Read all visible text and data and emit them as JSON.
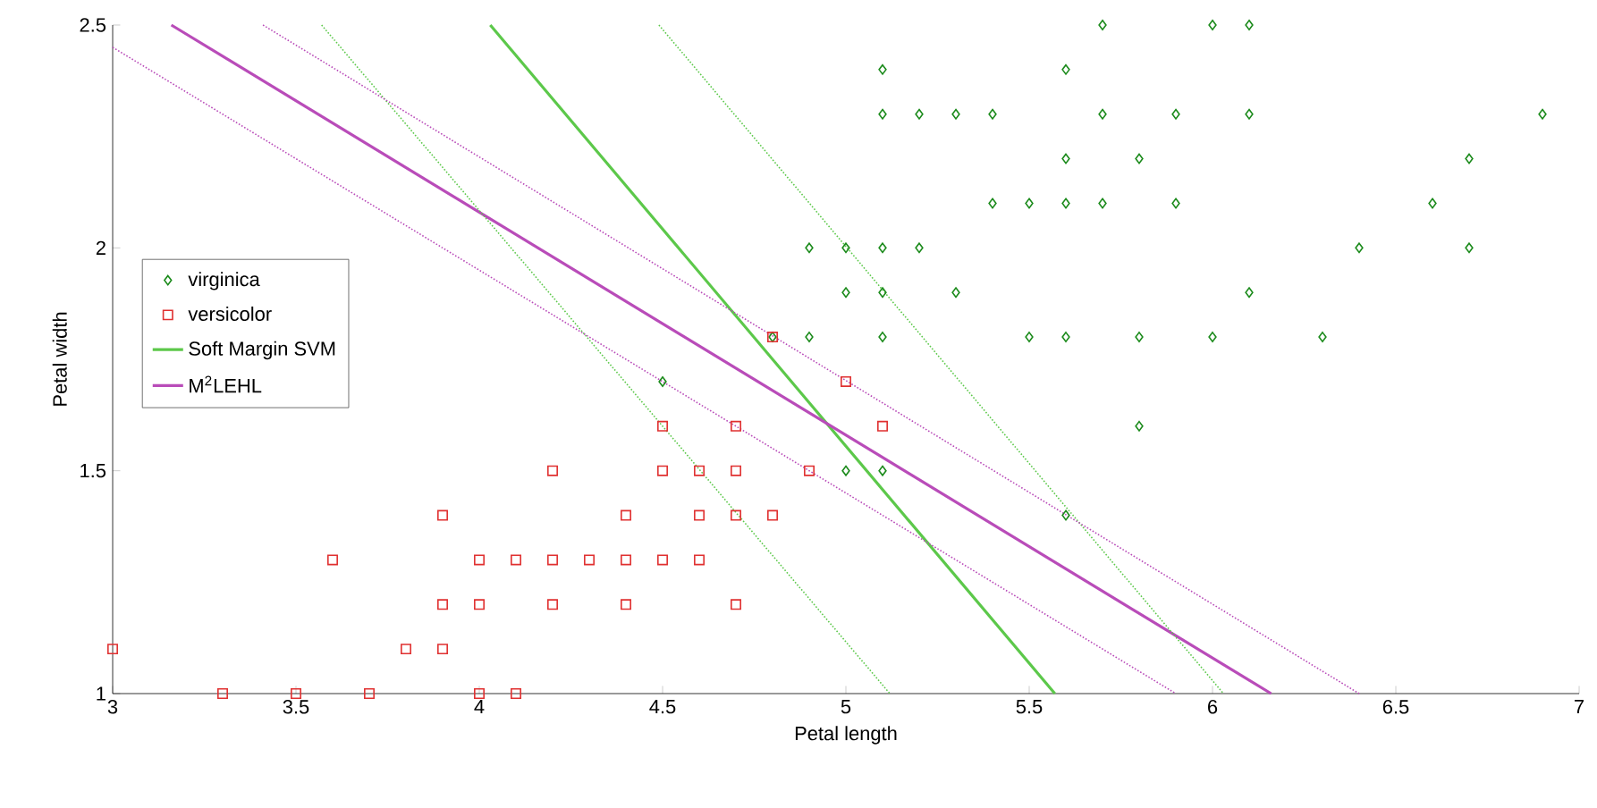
{
  "chart_data": {
    "type": "scatter",
    "xlabel": "Petal length",
    "ylabel": "Petal width",
    "xlim": [
      3,
      7
    ],
    "ylim": [
      1,
      2.5
    ],
    "xticks": [
      3,
      3.5,
      4,
      4.5,
      5,
      5.5,
      6,
      6.5,
      7
    ],
    "yticks": [
      1,
      1.5,
      2,
      2.5
    ],
    "grid": false,
    "legend": "left",
    "series": [
      {
        "name": "virginica",
        "color": "#1a8a1a",
        "marker": "diamond",
        "x": [
          5.7,
          6.0,
          6.1,
          5.1,
          5.6,
          5.1,
          5.2,
          5.3,
          5.4,
          5.7,
          5.9,
          6.1,
          6.9,
          5.6,
          5.8,
          6.7,
          5.4,
          5.5,
          5.6,
          5.7,
          5.9,
          6.6,
          4.9,
          5.0,
          5.1,
          5.2,
          6.4,
          6.7,
          5.0,
          5.1,
          5.3,
          6.1,
          4.8,
          4.9,
          5.1,
          5.5,
          5.6,
          5.8,
          6.0,
          6.3,
          4.5,
          5.8,
          5.0,
          5.1,
          5.6
        ],
        "values": [
          2.5,
          2.5,
          2.5,
          2.4,
          2.4,
          2.3,
          2.3,
          2.3,
          2.3,
          2.3,
          2.3,
          2.3,
          2.3,
          2.2,
          2.2,
          2.2,
          2.1,
          2.1,
          2.1,
          2.1,
          2.1,
          2.1,
          2.0,
          2.0,
          2.0,
          2.0,
          2.0,
          2.0,
          1.9,
          1.9,
          1.9,
          1.9,
          1.8,
          1.8,
          1.8,
          1.8,
          1.8,
          1.8,
          1.8,
          1.8,
          1.7,
          1.6,
          1.5,
          1.5,
          1.4
        ]
      },
      {
        "name": "versicolor",
        "color": "#e03030",
        "marker": "square",
        "x": [
          4.8,
          5.0,
          4.5,
          4.7,
          5.1,
          4.2,
          4.5,
          4.6,
          4.7,
          4.9,
          3.9,
          4.4,
          4.6,
          4.7,
          4.8,
          3.6,
          4.0,
          4.1,
          4.2,
          4.3,
          4.4,
          4.5,
          4.6,
          3.9,
          4.0,
          4.2,
          4.4,
          4.7,
          3.0,
          3.8,
          3.9,
          3.3,
          3.5,
          3.7,
          4.0,
          4.1
        ],
        "values": [
          1.8,
          1.7,
          1.6,
          1.6,
          1.6,
          1.5,
          1.5,
          1.5,
          1.5,
          1.5,
          1.4,
          1.4,
          1.4,
          1.4,
          1.4,
          1.3,
          1.3,
          1.3,
          1.3,
          1.3,
          1.3,
          1.3,
          1.3,
          1.2,
          1.2,
          1.2,
          1.2,
          1.2,
          1.1,
          1.1,
          1.1,
          1.0,
          1.0,
          1.0,
          1.0,
          1.0
        ]
      },
      {
        "name": "Soft Margin SVM",
        "type": "line",
        "color": "#5cc84a",
        "line_style": "solid",
        "x": [
          4.03,
          5.57
        ],
        "values": [
          2.5,
          1.0
        ]
      },
      {
        "name": "M$^{2}$LEHL",
        "type": "line",
        "color": "#b94cb9",
        "line_style": "solid",
        "x": [
          3.16,
          6.16
        ],
        "values": [
          2.5,
          1.0
        ]
      },
      {
        "type": "line",
        "color": "#5cc84a",
        "line_style": "dotted",
        "x": [
          3.57,
          5.12
        ],
        "values": [
          2.5,
          1.0
        ]
      },
      {
        "type": "line",
        "color": "#5cc84a",
        "line_style": "dotted",
        "x": [
          4.49,
          6.03
        ],
        "values": [
          2.5,
          1.0
        ]
      },
      {
        "type": "line",
        "color": "#b94cb9",
        "line_style": "dotted",
        "x": [
          3.0,
          5.9
        ],
        "values": [
          2.45,
          1.0
        ]
      },
      {
        "type": "line",
        "color": "#b94cb9",
        "line_style": "dotted",
        "x": [
          3.41,
          6.4
        ],
        "values": [
          2.5,
          1.0
        ]
      }
    ]
  }
}
